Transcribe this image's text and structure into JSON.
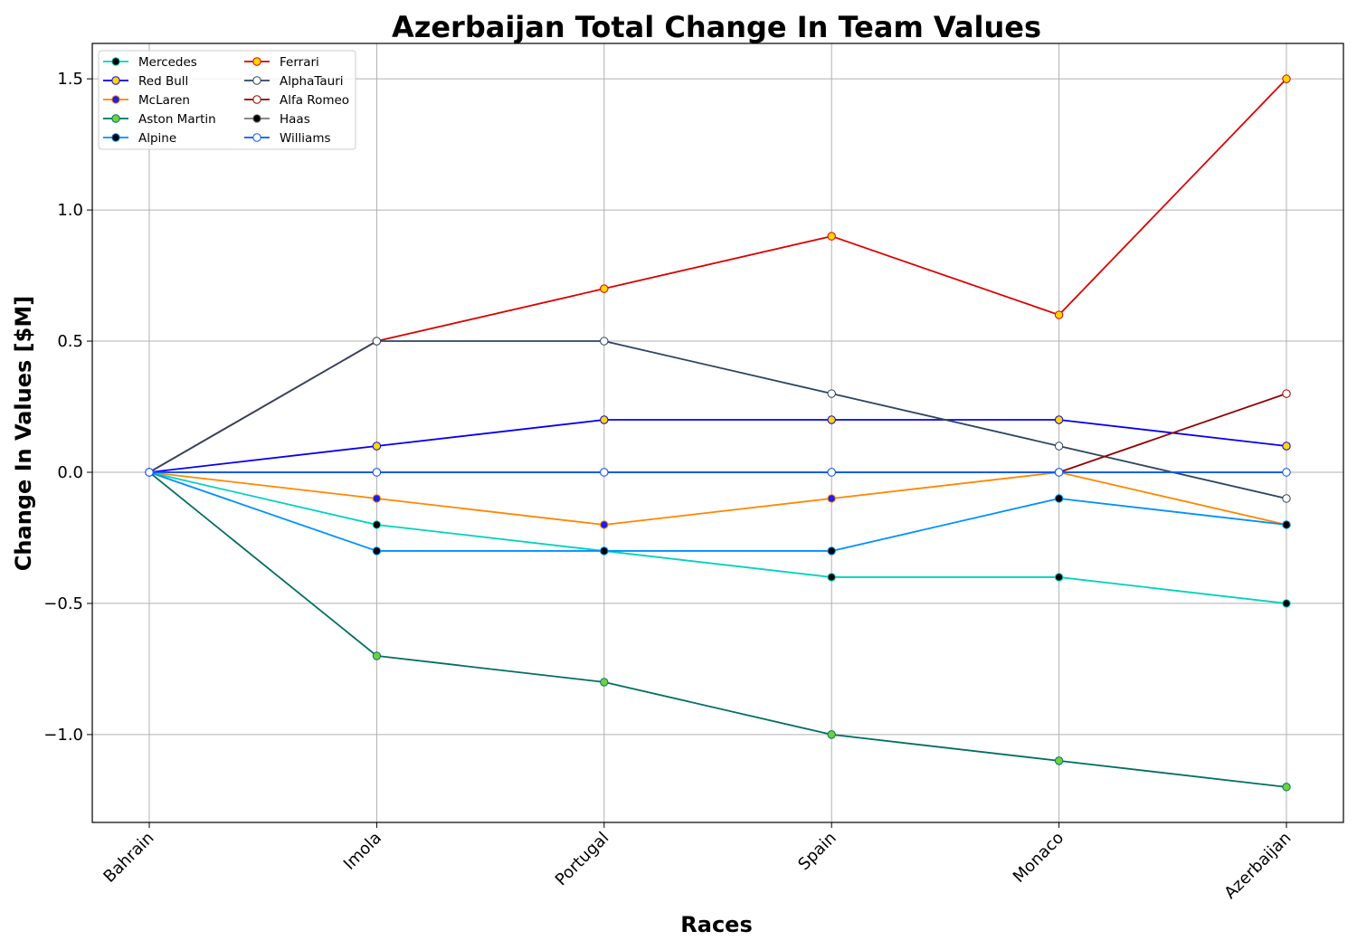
{
  "chart_data": {
    "type": "line",
    "title": "Azerbaijan Total Change In Team Values",
    "xlabel": "Races",
    "ylabel": "Change In Values [$M]",
    "categories": [
      "Bahrain",
      "Imola",
      "Portugal",
      "Spain",
      "Monaco",
      "Azerbaijan"
    ],
    "ylim": [
      -1.335,
      1.635
    ],
    "yticks": [
      -1.0,
      -0.5,
      0.0,
      0.5,
      1.0,
      1.5
    ],
    "ytick_labels": [
      "−1.0",
      "−0.5",
      "0.0",
      "0.5",
      "1.0",
      "1.5"
    ],
    "grid": true,
    "legend_position": "top-left",
    "series": [
      {
        "name": "Mercedes",
        "values": [
          0,
          -0.2,
          -0.3,
          -0.4,
          -0.4,
          -0.5
        ],
        "color": "#00D2BE",
        "marker_fill": "#000000",
        "marker_edge": "#00D2BE"
      },
      {
        "name": "Red Bull",
        "values": [
          0,
          0.1,
          0.2,
          0.2,
          0.2,
          0.1
        ],
        "color": "#0600EF",
        "marker_fill": "#FFD700",
        "marker_edge": "#0600EF"
      },
      {
        "name": "McLaren",
        "values": [
          0,
          -0.1,
          -0.2,
          -0.1,
          0.0,
          -0.2
        ],
        "color": "#FF8700",
        "marker_fill": "#1E1EE6",
        "marker_edge": "#FF8700"
      },
      {
        "name": "Aston Martin",
        "values": [
          0,
          -0.7,
          -0.8,
          -1.0,
          -1.1,
          -1.2
        ],
        "color": "#006F62",
        "marker_fill": "#6CD23E",
        "marker_edge": "#006F62"
      },
      {
        "name": "Alpine",
        "values": [
          0,
          -0.3,
          -0.3,
          -0.3,
          -0.1,
          -0.2
        ],
        "color": "#0090FF",
        "marker_fill": "#000000",
        "marker_edge": "#0090FF"
      },
      {
        "name": "Ferrari",
        "values": [
          0,
          0.5,
          0.7,
          0.9,
          0.6,
          1.5
        ],
        "color": "#DC0000",
        "marker_fill": "#FFD700",
        "marker_edge": "#DC0000"
      },
      {
        "name": "AlphaTauri",
        "values": [
          0,
          0.5,
          0.5,
          0.3,
          0.1,
          -0.1
        ],
        "color": "#2B4562",
        "marker_fill": "#FFFFFF",
        "marker_edge": "#2B4562"
      },
      {
        "name": "Alfa Romeo",
        "values": [
          0,
          0,
          0,
          0,
          0,
          0.3
        ],
        "color": "#900000",
        "marker_fill": "#FFFFFF",
        "marker_edge": "#900000"
      },
      {
        "name": "Haas",
        "values": [
          0,
          0,
          0,
          0,
          0,
          0
        ],
        "color": "#787878",
        "marker_fill": "#000000",
        "marker_edge": "#787878"
      },
      {
        "name": "Williams",
        "values": [
          0,
          0,
          0,
          0,
          0,
          0
        ],
        "color": "#005AFF",
        "marker_fill": "#FFFFFF",
        "marker_edge": "#005AFF"
      }
    ]
  }
}
